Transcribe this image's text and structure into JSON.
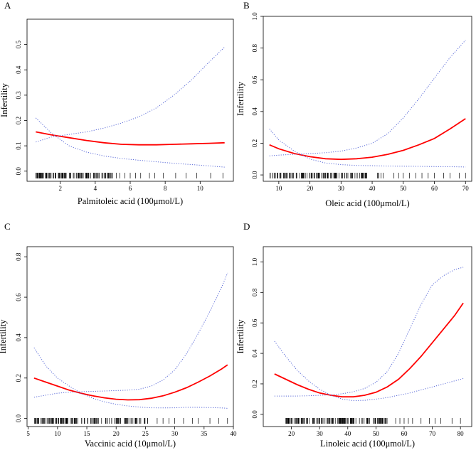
{
  "chart_data": [
    {
      "panel": "A",
      "type": "line",
      "xlabel": "Palmitoleic acid (100μmol/L)",
      "ylabel": "Infertility",
      "xlim": [
        0.1,
        11.9
      ],
      "ylim": [
        -0.04,
        0.6
      ],
      "xticks": [
        2,
        4,
        6,
        8,
        10
      ],
      "yticks": [
        0.0,
        0.1,
        0.2,
        0.3,
        0.4,
        0.5
      ],
      "series": [
        {
          "name": "estimate",
          "color": "#ff0000",
          "style": "solid",
          "x": [
            0.6,
            1.5,
            2.5,
            3.5,
            4.5,
            5.5,
            6.5,
            7.5,
            8.5,
            9.5,
            10.5,
            11.4
          ],
          "y": [
            0.155,
            0.143,
            0.132,
            0.121,
            0.112,
            0.106,
            0.104,
            0.104,
            0.106,
            0.108,
            0.11,
            0.112
          ]
        },
        {
          "name": "upper-ci",
          "color": "#5b6bd8",
          "style": "dotted",
          "x": [
            0.6,
            1.5,
            2.5,
            3.5,
            4.5,
            5.5,
            6.5,
            7.5,
            8.5,
            9.5,
            10.5,
            11.4
          ],
          "y": [
            0.115,
            0.135,
            0.145,
            0.155,
            0.17,
            0.19,
            0.215,
            0.25,
            0.3,
            0.36,
            0.43,
            0.49
          ]
        },
        {
          "name": "lower-ci",
          "color": "#5b6bd8",
          "style": "dotted",
          "x": [
            0.6,
            1.5,
            2.5,
            3.5,
            4.5,
            5.5,
            6.5,
            7.5,
            8.5,
            9.5,
            10.5,
            11.4
          ],
          "y": [
            0.21,
            0.15,
            0.1,
            0.075,
            0.06,
            0.05,
            0.043,
            0.037,
            0.031,
            0.026,
            0.021,
            0.016
          ]
        }
      ],
      "rug": {
        "dense_range": [
          0.6,
          5.0
        ],
        "dense_count": 120,
        "sparse": [
          5.2,
          5.4,
          5.7,
          6.0,
          6.3,
          6.6,
          7.1,
          7.4,
          7.9,
          8.6,
          9.2,
          9.8,
          10.6,
          11.3
        ]
      }
    },
    {
      "panel": "B",
      "type": "line",
      "xlabel": "Oleic acid (100μmol/L)",
      "ylabel": "Infertility",
      "xlim": [
        5,
        72
      ],
      "ylim": [
        -0.04,
        1.0
      ],
      "xticks": [
        10,
        20,
        30,
        40,
        50,
        60,
        70
      ],
      "yticks": [
        0.0,
        0.2,
        0.4,
        0.6,
        0.8,
        1.0
      ],
      "series": [
        {
          "name": "estimate",
          "color": "#ff0000",
          "style": "solid",
          "x": [
            7,
            10,
            15,
            20,
            25,
            30,
            35,
            40,
            45,
            50,
            55,
            60,
            65,
            70
          ],
          "y": [
            0.19,
            0.165,
            0.135,
            0.115,
            0.102,
            0.098,
            0.102,
            0.112,
            0.13,
            0.155,
            0.19,
            0.23,
            0.29,
            0.355
          ]
        },
        {
          "name": "upper-ci",
          "color": "#5b6bd8",
          "style": "dotted",
          "x": [
            7,
            10,
            15,
            20,
            25,
            30,
            35,
            40,
            45,
            50,
            55,
            60,
            65,
            70
          ],
          "y": [
            0.12,
            0.125,
            0.13,
            0.135,
            0.14,
            0.15,
            0.17,
            0.2,
            0.26,
            0.36,
            0.48,
            0.61,
            0.74,
            0.85
          ]
        },
        {
          "name": "lower-ci",
          "color": "#5b6bd8",
          "style": "dotted",
          "x": [
            7,
            10,
            15,
            20,
            25,
            30,
            35,
            40,
            45,
            50,
            55,
            60,
            65,
            70
          ],
          "y": [
            0.29,
            0.22,
            0.15,
            0.1,
            0.075,
            0.065,
            0.06,
            0.058,
            0.056,
            0.055,
            0.054,
            0.053,
            0.052,
            0.05
          ]
        }
      ],
      "rug": {
        "dense_range": [
          7,
          45
        ],
        "dense_count": 120,
        "sparse": [
          47,
          48.5,
          50,
          52,
          54,
          56,
          58,
          60,
          63,
          65,
          68,
          70
        ]
      }
    },
    {
      "panel": "C",
      "type": "line",
      "xlabel": "Vaccinic acid (10μmol/L)",
      "ylabel": "Infertility",
      "xlim": [
        4.8,
        40
      ],
      "ylim": [
        -0.04,
        0.85
      ],
      "xticks": [
        5,
        10,
        15,
        20,
        25,
        30,
        35,
        40
      ],
      "yticks": [
        0.0,
        0.2,
        0.4,
        0.6,
        0.8
      ],
      "series": [
        {
          "name": "estimate",
          "color": "#ff0000",
          "style": "solid",
          "x": [
            6,
            8,
            10,
            12,
            14,
            16,
            18,
            20,
            22,
            24,
            26,
            28,
            30,
            32,
            34,
            36,
            38,
            39
          ],
          "y": [
            0.2,
            0.18,
            0.16,
            0.14,
            0.125,
            0.112,
            0.102,
            0.095,
            0.092,
            0.093,
            0.1,
            0.112,
            0.13,
            0.152,
            0.18,
            0.21,
            0.245,
            0.265
          ]
        },
        {
          "name": "upper-ci",
          "color": "#5b6bd8",
          "style": "dotted",
          "x": [
            6,
            8,
            10,
            12,
            14,
            16,
            18,
            20,
            22,
            24,
            26,
            28,
            30,
            32,
            34,
            36,
            38,
            39
          ],
          "y": [
            0.105,
            0.115,
            0.125,
            0.13,
            0.132,
            0.134,
            0.136,
            0.138,
            0.14,
            0.145,
            0.16,
            0.19,
            0.24,
            0.32,
            0.42,
            0.53,
            0.65,
            0.72
          ]
        },
        {
          "name": "lower-ci",
          "color": "#5b6bd8",
          "style": "dotted",
          "x": [
            6,
            8,
            10,
            12,
            14,
            16,
            18,
            20,
            22,
            24,
            26,
            28,
            30,
            32,
            34,
            36,
            38,
            39
          ],
          "y": [
            0.35,
            0.26,
            0.2,
            0.16,
            0.125,
            0.1,
            0.082,
            0.07,
            0.062,
            0.056,
            0.053,
            0.052,
            0.053,
            0.055,
            0.055,
            0.054,
            0.052,
            0.05
          ]
        }
      ],
      "rug": {
        "dense_range": [
          6,
          26
        ],
        "dense_count": 130,
        "sparse": [
          27,
          28,
          29,
          30,
          31.5,
          33,
          34,
          36,
          37.5,
          39
        ]
      }
    },
    {
      "panel": "D",
      "type": "line",
      "xlabel": "Linoleic acid (100μmol/L)",
      "ylabel": "Infertility",
      "xlim": [
        10,
        84
      ],
      "ylim": [
        -0.08,
        1.1
      ],
      "xticks": [
        20,
        30,
        40,
        50,
        60,
        70,
        80
      ],
      "yticks": [
        0.0,
        0.2,
        0.4,
        0.6,
        0.8,
        1.0
      ],
      "series": [
        {
          "name": "estimate",
          "color": "#ff0000",
          "style": "solid",
          "x": [
            14,
            18,
            22,
            26,
            30,
            34,
            38,
            42,
            46,
            50,
            54,
            58,
            62,
            66,
            70,
            74,
            78,
            81
          ],
          "y": [
            0.265,
            0.23,
            0.195,
            0.165,
            0.14,
            0.125,
            0.115,
            0.115,
            0.125,
            0.145,
            0.18,
            0.23,
            0.3,
            0.38,
            0.47,
            0.56,
            0.65,
            0.73
          ]
        },
        {
          "name": "upper-ci",
          "color": "#5b6bd8",
          "style": "dotted",
          "x": [
            14,
            18,
            22,
            26,
            30,
            34,
            38,
            42,
            46,
            50,
            54,
            58,
            62,
            66,
            70,
            74,
            78,
            81
          ],
          "y": [
            0.12,
            0.12,
            0.12,
            0.122,
            0.125,
            0.128,
            0.135,
            0.148,
            0.17,
            0.21,
            0.28,
            0.4,
            0.56,
            0.72,
            0.85,
            0.91,
            0.95,
            0.965
          ]
        },
        {
          "name": "lower-ci",
          "color": "#5b6bd8",
          "style": "dotted",
          "x": [
            14,
            18,
            22,
            26,
            30,
            34,
            38,
            42,
            46,
            50,
            54,
            58,
            62,
            66,
            70,
            74,
            78,
            81
          ],
          "y": [
            0.48,
            0.38,
            0.29,
            0.22,
            0.165,
            0.125,
            0.1,
            0.09,
            0.092,
            0.1,
            0.11,
            0.125,
            0.14,
            0.16,
            0.18,
            0.2,
            0.22,
            0.235
          ]
        }
      ],
      "rug": {
        "dense_range": [
          18,
          55
        ],
        "dense_count": 150,
        "sparse": [
          57,
          58.5,
          60,
          61.5,
          63,
          66,
          69,
          71,
          73,
          77,
          80
        ]
      }
    }
  ]
}
